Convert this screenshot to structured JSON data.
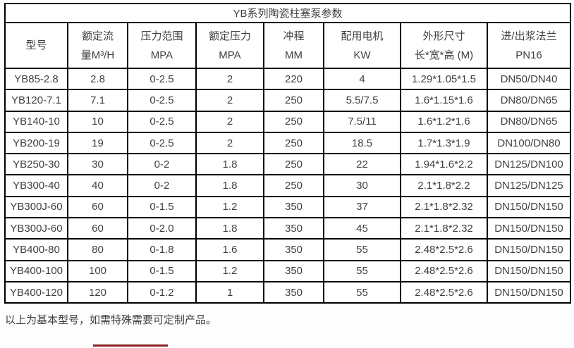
{
  "page": {
    "footer_note": "以上为基本型号，如需特殊需要可定制产品。",
    "accent_underline_color": "#8b2222",
    "text_color": "#3f3f3f",
    "border_color": "#000000"
  },
  "table": {
    "title": "YB系列陶瓷柱塞泵参数",
    "columns": [
      {
        "id": "model",
        "lines": [
          "型号"
        ]
      },
      {
        "id": "rated-flow",
        "lines": [
          "额定流",
          "量M³/H"
        ]
      },
      {
        "id": "pressure-range",
        "lines": [
          "压力范围",
          "MPA"
        ]
      },
      {
        "id": "rated-pressure",
        "lines": [
          "额定压力",
          "MPA"
        ]
      },
      {
        "id": "stroke",
        "lines": [
          "冲程",
          "MM"
        ]
      },
      {
        "id": "motor",
        "lines": [
          "配用电机",
          "KW"
        ]
      },
      {
        "id": "dimensions",
        "lines": [
          "外形尺寸",
          "长*宽*高 (M)"
        ]
      },
      {
        "id": "flange",
        "lines": [
          "进/出浆法兰",
          "PN16"
        ]
      }
    ],
    "rows": [
      [
        "YB85-2.8",
        "2.8",
        "0-2.5",
        "2",
        "220",
        "4",
        "1.29*1.05*1.5",
        "DN50/DN40"
      ],
      [
        "YB120-7.1",
        "7.1",
        "0-2.5",
        "2",
        "250",
        "5.5/7.5",
        "1.6*1.15*1.6",
        "DN80/DN65"
      ],
      [
        "YB140-10",
        "10",
        "0-2.5",
        "2",
        "250",
        "7.5/11",
        "1.6*1.2*1.6",
        "DN80/DN65"
      ],
      [
        "YB200-19",
        "19",
        "0-2.5",
        "2",
        "250",
        "18.5",
        "1.7*1.3*1.9",
        "DN100/DN80"
      ],
      [
        "YB250-30",
        "30",
        "0-2",
        "1.8",
        "250",
        "22",
        "1.94*1.6*2.2",
        "DN125/DN100"
      ],
      [
        "YB300-40",
        "40",
        "0-2",
        "1.8",
        "250",
        "30",
        "2.1*1.8*2.2",
        "DN125/DN125"
      ],
      [
        "YB300J-60",
        "60",
        "0-1.5",
        "1.2",
        "350",
        "37",
        "2.1*1.8*2.32",
        "DN150/DN150"
      ],
      [
        "YB300J-60",
        "60",
        "0-2.0",
        "1.8",
        "350",
        "45",
        "2.1*1.8*2.32",
        "DN150/DN150"
      ],
      [
        "YB400-80",
        "80",
        "0-1.8",
        "1.6",
        "350",
        "55",
        "2.48*2.5*2.6",
        "DN150/DN150"
      ],
      [
        "YB400-100",
        "100",
        "0-1.5",
        "1.2",
        "350",
        "55",
        "2.48*2.5*2.6",
        "DN150/DN150"
      ],
      [
        "YB400-120",
        "120",
        "0-1.2",
        "1",
        "350",
        "55",
        "2.48*2.5*2.6",
        "DN150/DN150"
      ]
    ]
  }
}
